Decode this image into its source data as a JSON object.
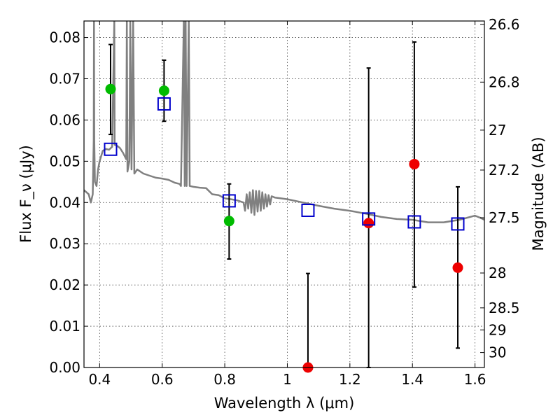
{
  "chart_data": {
    "type": "scatter",
    "xlabel": "Wavelength λ (μm)",
    "ylabel": "Flux F_ν (μJy)",
    "y2label": "Magnitude (AB)",
    "xlim": [
      0.35,
      1.63
    ],
    "ylim": [
      0.0,
      0.084
    ],
    "x_ticks": [
      0.4,
      0.6,
      0.8,
      1.0,
      1.2,
      1.4,
      1.6
    ],
    "x_tick_labels": [
      "0.4",
      "0.6",
      "0.8",
      "1",
      "1.2",
      "1.4",
      "1.6"
    ],
    "y_ticks": [
      0.0,
      0.01,
      0.02,
      0.03,
      0.04,
      0.05,
      0.06,
      0.07,
      0.08
    ],
    "y_tick_labels": [
      "0.00",
      "0.01",
      "0.02",
      "0.03",
      "0.04",
      "0.05",
      "0.06",
      "0.07",
      "0.08"
    ],
    "mag_ticks": [
      26.6,
      26.8,
      27,
      27.2,
      27.5,
      28,
      28.5,
      29,
      30
    ],
    "mag_tick_labels": [
      "26.6",
      "26.8",
      "27",
      "27.2",
      "27.5",
      "28",
      "28.5",
      "29",
      "30"
    ],
    "grid": true,
    "colors": {
      "detection": "#00bb00",
      "non_detection": "#ee0000",
      "model": "#0000cc",
      "template": "#808080",
      "errorbar": "#000000"
    },
    "observed": [
      {
        "x": 0.435,
        "y": 0.0675,
        "err_low": 0.0565,
        "err_high": 0.0783,
        "kind": "detection"
      },
      {
        "x": 0.606,
        "y": 0.0671,
        "err_low": 0.0597,
        "err_high": 0.0745,
        "kind": "detection"
      },
      {
        "x": 0.814,
        "y": 0.0355,
        "err_low": 0.0263,
        "err_high": 0.0445,
        "kind": "detection"
      },
      {
        "x": 1.066,
        "y": 0.0,
        "err_low": 0.0,
        "err_high": 0.0228,
        "kind": "non_detection"
      },
      {
        "x": 1.26,
        "y": 0.035,
        "err_low": 0.0,
        "err_high": 0.0726,
        "kind": "non_detection"
      },
      {
        "x": 1.406,
        "y": 0.0493,
        "err_low": 0.0195,
        "err_high": 0.0789,
        "kind": "non_detection"
      },
      {
        "x": 1.545,
        "y": 0.0242,
        "err_low": 0.0047,
        "err_high": 0.0438,
        "kind": "non_detection"
      }
    ],
    "model_points": [
      {
        "x": 0.435,
        "y": 0.0529
      },
      {
        "x": 0.606,
        "y": 0.0639
      },
      {
        "x": 0.814,
        "y": 0.0404
      },
      {
        "x": 1.066,
        "y": 0.0381
      },
      {
        "x": 1.26,
        "y": 0.036
      },
      {
        "x": 1.406,
        "y": 0.0353
      },
      {
        "x": 1.545,
        "y": 0.0348
      }
    ],
    "template_spectrum": [
      [
        0.35,
        0.043
      ],
      [
        0.365,
        0.042
      ],
      [
        0.372,
        0.04
      ],
      [
        0.378,
        0.042
      ],
      [
        0.381,
        0.055
      ],
      [
        0.382,
        0.084
      ],
      [
        0.383,
        0.055
      ],
      [
        0.385,
        0.045
      ],
      [
        0.39,
        0.044
      ],
      [
        0.395,
        0.048
      ],
      [
        0.4,
        0.05
      ],
      [
        0.41,
        0.0525
      ],
      [
        0.42,
        0.053
      ],
      [
        0.43,
        0.0528
      ],
      [
        0.44,
        0.0535
      ],
      [
        0.447,
        0.084
      ],
      [
        0.448,
        0.054
      ],
      [
        0.455,
        0.0538
      ],
      [
        0.465,
        0.0532
      ],
      [
        0.475,
        0.052
      ],
      [
        0.485,
        0.0505
      ],
      [
        0.487,
        0.084
      ],
      [
        0.489,
        0.0475
      ],
      [
        0.495,
        0.05
      ],
      [
        0.498,
        0.084
      ],
      [
        0.502,
        0.048
      ],
      [
        0.507,
        0.084
      ],
      [
        0.511,
        0.047
      ],
      [
        0.52,
        0.048
      ],
      [
        0.54,
        0.047
      ],
      [
        0.56,
        0.0465
      ],
      [
        0.58,
        0.046
      ],
      [
        0.6,
        0.0458
      ],
      [
        0.62,
        0.0455
      ],
      [
        0.64,
        0.0448
      ],
      [
        0.656,
        0.0445
      ],
      [
        0.66,
        0.044
      ],
      [
        0.669,
        0.084
      ],
      [
        0.672,
        0.044
      ],
      [
        0.675,
        0.084
      ],
      [
        0.678,
        0.044
      ],
      [
        0.685,
        0.084
      ],
      [
        0.688,
        0.044
      ],
      [
        0.7,
        0.0438
      ],
      [
        0.72,
        0.0436
      ],
      [
        0.74,
        0.0435
      ],
      [
        0.76,
        0.042
      ],
      [
        0.78,
        0.0418
      ],
      [
        0.8,
        0.041
      ],
      [
        0.82,
        0.0408
      ],
      [
        0.84,
        0.0405
      ],
      [
        0.86,
        0.04
      ],
      [
        0.865,
        0.038
      ],
      [
        0.87,
        0.042
      ],
      [
        0.875,
        0.0385
      ],
      [
        0.88,
        0.0425
      ],
      [
        0.885,
        0.0375
      ],
      [
        0.89,
        0.043
      ],
      [
        0.895,
        0.037
      ],
      [
        0.9,
        0.0428
      ],
      [
        0.905,
        0.0378
      ],
      [
        0.91,
        0.0428
      ],
      [
        0.915,
        0.038
      ],
      [
        0.92,
        0.0425
      ],
      [
        0.925,
        0.0385
      ],
      [
        0.93,
        0.042
      ],
      [
        0.935,
        0.039
      ],
      [
        0.94,
        0.0418
      ],
      [
        0.945,
        0.0395
      ],
      [
        0.95,
        0.0415
      ],
      [
        0.96,
        0.0412
      ],
      [
        0.98,
        0.041
      ],
      [
        1.0,
        0.0408
      ],
      [
        1.05,
        0.04
      ],
      [
        1.1,
        0.0392
      ],
      [
        1.15,
        0.0385
      ],
      [
        1.2,
        0.038
      ],
      [
        1.25,
        0.0373
      ],
      [
        1.3,
        0.0365
      ],
      [
        1.35,
        0.036
      ],
      [
        1.4,
        0.0358
      ],
      [
        1.45,
        0.0352
      ],
      [
        1.5,
        0.0352
      ],
      [
        1.55,
        0.0358
      ],
      [
        1.6,
        0.0368
      ],
      [
        1.62,
        0.0362
      ],
      [
        1.63,
        0.0358
      ]
    ]
  }
}
